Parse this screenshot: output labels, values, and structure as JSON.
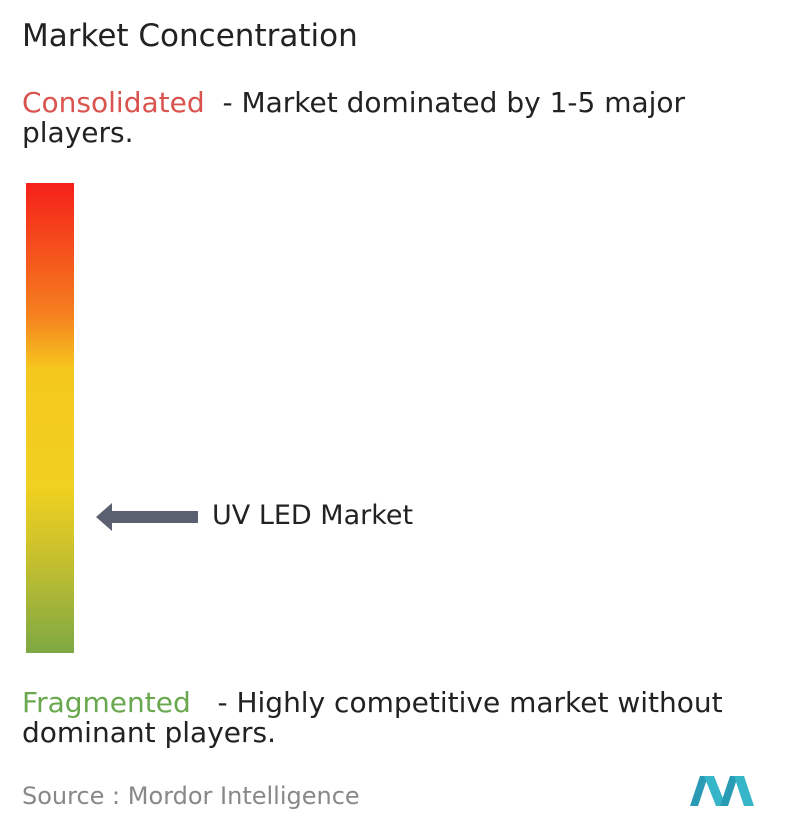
{
  "title": "Market Concentration",
  "consolidated": {
    "label": "Consolidated",
    "description": "- Market dominated by 1-5 major players."
  },
  "fragmented": {
    "label": "Fragmented",
    "description": "- Highly competitive market without dominant players."
  },
  "marker": {
    "label": "UV LED Market"
  },
  "source": {
    "label": "Source :",
    "text": "Mordor Intelligence"
  }
}
